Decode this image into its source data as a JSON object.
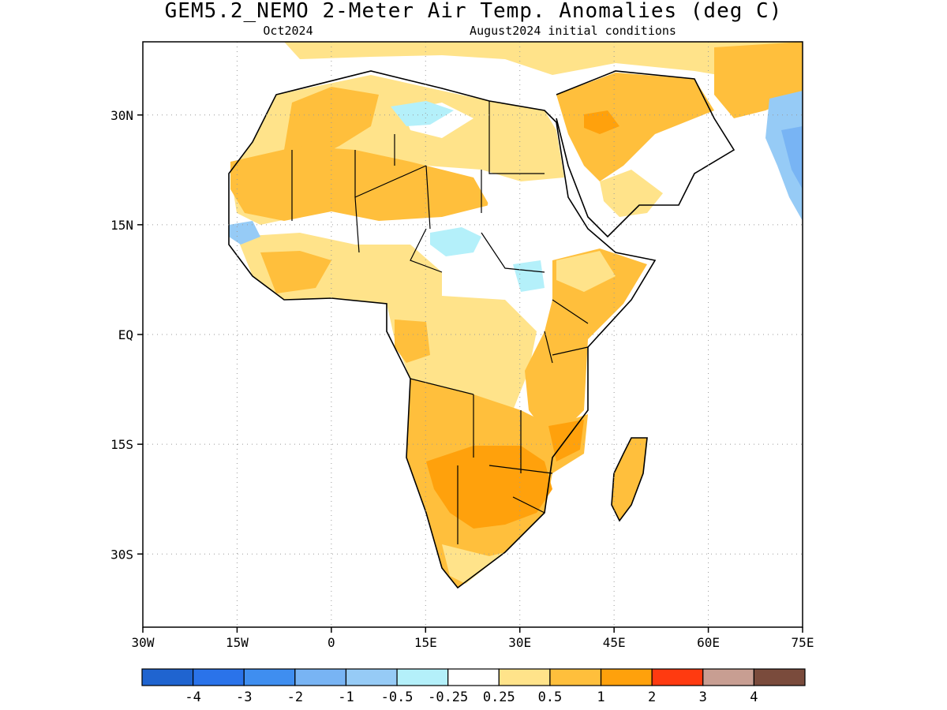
{
  "title": "GEM5.2_NEMO 2-Meter Air Temp. Anomalies (deg C)",
  "subtitle_left": "Oct2024",
  "subtitle_right": "August2024 initial conditions",
  "map": {
    "region": "Africa",
    "lon_range": [
      -30,
      75
    ],
    "lat_range": [
      -40,
      40
    ],
    "lon_ticks": [
      {
        "value": -30,
        "label": "30W"
      },
      {
        "value": -15,
        "label": "15W"
      },
      {
        "value": 0,
        "label": "0"
      },
      {
        "value": 15,
        "label": "15E"
      },
      {
        "value": 30,
        "label": "30E"
      },
      {
        "value": 45,
        "label": "45E"
      },
      {
        "value": 60,
        "label": "60E"
      },
      {
        "value": 75,
        "label": "75E"
      }
    ],
    "lat_ticks": [
      {
        "value": 30,
        "label": "30N"
      },
      {
        "value": 15,
        "label": "15N"
      },
      {
        "value": 0,
        "label": "EQ"
      },
      {
        "value": -15,
        "label": "15S"
      },
      {
        "value": -30,
        "label": "30S"
      }
    ],
    "grid": "dotted"
  },
  "colorbar": {
    "colors": [
      "#1f64d0",
      "#2a73ea",
      "#3f8ef0",
      "#78b4f4",
      "#96cbf6",
      "#b4f0fa",
      "#ffffff",
      "#ffe38a",
      "#ffbf3c",
      "#ffa10c",
      "#ff3a10",
      "#c89e92",
      "#7a4b3c"
    ],
    "labels": [
      "-4",
      "-3",
      "-2",
      "-1",
      "-0.5",
      "-0.25",
      "0.25",
      "0.5",
      "1",
      "2",
      "3",
      "4"
    ]
  },
  "anomaly_regions": [
    {
      "name": "sahara-north",
      "level": "0.5"
    },
    {
      "name": "sahel-west",
      "level": "1"
    },
    {
      "name": "arabia-center",
      "level": "1"
    },
    {
      "name": "arabia-hotspot",
      "level": "2"
    },
    {
      "name": "southern-africa",
      "level": "2"
    },
    {
      "name": "east-africa",
      "level": "1"
    },
    {
      "name": "central-africa",
      "level": "0.5"
    },
    {
      "name": "madagascar",
      "level": "1"
    },
    {
      "name": "chad-sudan-cool",
      "level": "-0.5"
    },
    {
      "name": "senegal-cool",
      "level": "-0.5"
    },
    {
      "name": "iran-pakistan-cool",
      "level": "-1"
    }
  ]
}
